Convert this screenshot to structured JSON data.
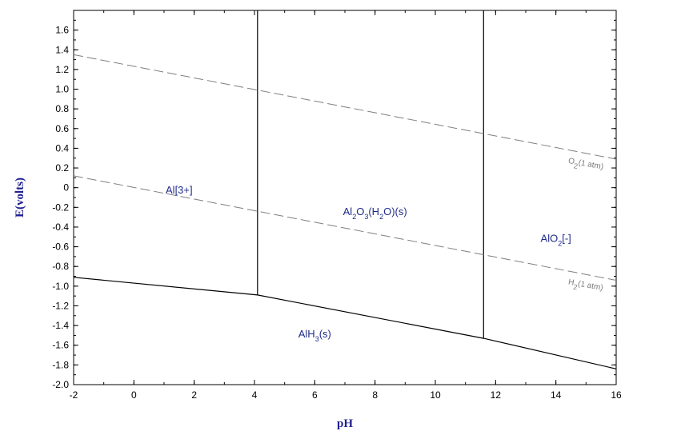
{
  "chart_data": {
    "type": "line",
    "title": "",
    "xlabel": "pH",
    "ylabel": "E(volts)",
    "xlim": [
      -2,
      16
    ],
    "ylim": [
      -2.0,
      1.8
    ],
    "x_ticks": [
      -2,
      0,
      2,
      4,
      6,
      8,
      10,
      12,
      14,
      16
    ],
    "y_ticks": [
      1.6,
      1.4,
      1.2,
      1.0,
      0.8,
      0.6,
      0.4,
      0.2,
      0,
      -0.2,
      -0.4,
      -0.6,
      -0.8,
      -1.0,
      -1.2,
      -1.4,
      -1.6,
      -1.8,
      -2.0
    ],
    "y_tick_labels": [
      "1.6",
      "1.4",
      "1.2",
      "1.0",
      "0.8",
      "0.6",
      "0.4",
      "0.2",
      "0",
      "-0.2",
      "-0.4",
      "-0.6",
      "-0.8",
      "-1.0",
      "-1.2",
      "-1.4",
      "-1.6",
      "-1.8",
      "-2.0"
    ],
    "grid": false,
    "series": [
      {
        "style": "solid",
        "color": "#000000",
        "x": [
          -2,
          4.1,
          11.6,
          16
        ],
        "y": [
          -0.91,
          -1.09,
          -1.53,
          -1.84
        ]
      },
      {
        "style": "solid",
        "color": "#000000",
        "x": [
          4.1,
          4.1
        ],
        "y": [
          -1.09,
          1.8
        ]
      },
      {
        "style": "solid",
        "color": "#000000",
        "x": [
          11.6,
          11.6
        ],
        "y": [
          -1.53,
          1.8
        ]
      },
      {
        "style": "dashed",
        "color": "#7f7f7f",
        "x": [
          -2,
          16
        ],
        "y": [
          1.35,
          0.29
        ]
      },
      {
        "style": "dashed",
        "color": "#7f7f7f",
        "x": [
          -2,
          16
        ],
        "y": [
          0.12,
          -0.94
        ]
      }
    ],
    "region_labels": [
      {
        "parts": [
          {
            "t": "Al[3+]"
          }
        ],
        "x": 1.5,
        "y": -0.06
      },
      {
        "parts": [
          {
            "t": "Al"
          },
          {
            "t": "2",
            "sub": true
          },
          {
            "t": "O"
          },
          {
            "t": "3",
            "sub": true
          },
          {
            "t": "(H"
          },
          {
            "t": "2",
            "sub": true
          },
          {
            "t": "O)(s)"
          }
        ],
        "x": 8.0,
        "y": -0.28
      },
      {
        "parts": [
          {
            "t": "AlO"
          },
          {
            "t": "2",
            "sub": true
          },
          {
            "t": "[-]"
          }
        ],
        "x": 14.0,
        "y": -0.55
      },
      {
        "parts": [
          {
            "t": "AlH"
          },
          {
            "t": "3",
            "sub": true
          },
          {
            "t": "(s)"
          }
        ],
        "x": 6.0,
        "y": -1.52
      }
    ],
    "gas_labels": [
      {
        "parts": [
          {
            "t": "O"
          },
          {
            "t": "2",
            "sub": true
          },
          {
            "t": "(1 atm)"
          }
        ],
        "x": 14.4,
        "y": 0.25,
        "angle": 10
      },
      {
        "parts": [
          {
            "t": "H"
          },
          {
            "t": "2",
            "sub": true
          },
          {
            "t": "(1 atm)"
          }
        ],
        "x": 14.4,
        "y": -0.98,
        "angle": 10
      }
    ]
  }
}
